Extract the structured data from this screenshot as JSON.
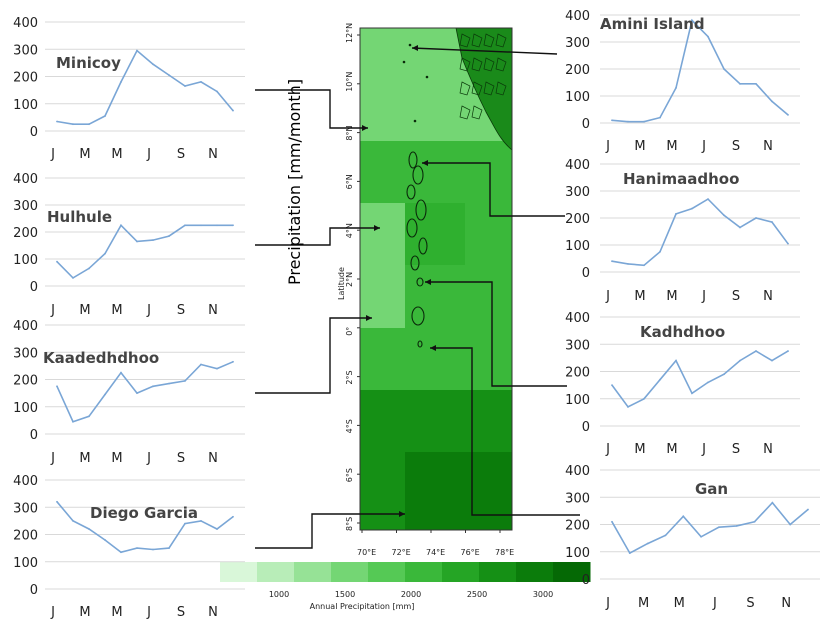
{
  "figure": {
    "y_axis_label": "Precipitation [mm/month]",
    "colorbar_title": "Annual Precipitation [mm]",
    "colorbar_ticks": [
      "1000",
      "1500",
      "2000",
      "2500",
      "3000"
    ],
    "colorbar_colors": [
      "#d9f7d9",
      "#b8edb8",
      "#96e296",
      "#74d674",
      "#55c955",
      "#3ab83a",
      "#25a525",
      "#159015",
      "#0b7c0b",
      "#056905"
    ],
    "map": {
      "lat_ticks": [
        "12°N",
        "10°N",
        "8°N",
        "6°N",
        "4°N",
        "2°N",
        "0°",
        "2°S",
        "4°S",
        "6°S",
        "8°S"
      ],
      "lon_ticks": [
        "70°E",
        "72°E",
        "74°E",
        "76°E",
        "78°E"
      ],
      "lat_label": "Latitude",
      "colors": {
        "light": "#74d674",
        "mid": "#3ab83a",
        "mid2": "#2fb02f",
        "dark": "#159015",
        "darker": "#0b7c0b",
        "land": "#1a8a1a"
      }
    }
  },
  "chart_data": [
    {
      "type": "line",
      "title": "Minicoy",
      "categories": [
        "J",
        "F",
        "M",
        "A",
        "M",
        "J",
        "J",
        "A",
        "S",
        "O",
        "N",
        "D"
      ],
      "tick_labels": [
        "J",
        "M",
        "M",
        "J",
        "S",
        "N"
      ],
      "yticks": [
        "400",
        "300",
        "200",
        "100",
        "0"
      ],
      "ylim": [
        0,
        400
      ],
      "values": [
        35,
        25,
        25,
        55,
        180,
        295,
        245,
        205,
        165,
        180,
        145,
        75
      ],
      "color": "#7aa6d6"
    },
    {
      "type": "line",
      "title": "Hulhule",
      "categories": [
        "J",
        "F",
        "M",
        "A",
        "M",
        "J",
        "J",
        "A",
        "S",
        "O",
        "N",
        "D"
      ],
      "tick_labels": [
        "J",
        "M",
        "M",
        "J",
        "S",
        "N"
      ],
      "yticks": [
        "400",
        "300",
        "200",
        "100",
        "0"
      ],
      "ylim": [
        0,
        400
      ],
      "values": [
        90,
        30,
        65,
        120,
        225,
        165,
        170,
        185,
        225,
        225,
        225,
        225
      ],
      "color": "#7aa6d6"
    },
    {
      "type": "line",
      "title": "Kaadedhdhoo",
      "categories": [
        "J",
        "F",
        "M",
        "A",
        "M",
        "J",
        "J",
        "A",
        "S",
        "O",
        "N",
        "D"
      ],
      "tick_labels": [
        "J",
        "M",
        "M",
        "J",
        "S",
        "N"
      ],
      "yticks": [
        "400",
        "300",
        "200",
        "100",
        "0"
      ],
      "ylim": [
        0,
        400
      ],
      "values": [
        175,
        45,
        65,
        145,
        225,
        150,
        175,
        185,
        195,
        255,
        240,
        265
      ],
      "color": "#7aa6d6"
    },
    {
      "type": "line",
      "title": "Diego Garcia",
      "categories": [
        "J",
        "F",
        "M",
        "A",
        "M",
        "J",
        "J",
        "A",
        "S",
        "O",
        "N",
        "D"
      ],
      "tick_labels": [
        "J",
        "M",
        "M",
        "J",
        "S",
        "N"
      ],
      "yticks": [
        "400",
        "300",
        "200",
        "100",
        "0"
      ],
      "ylim": [
        0,
        400
      ],
      "values": [
        320,
        250,
        220,
        180,
        135,
        150,
        145,
        150,
        240,
        250,
        220,
        265
      ],
      "color": "#7aa6d6"
    },
    {
      "type": "line",
      "title": "Amini Island",
      "categories": [
        "J",
        "F",
        "M",
        "A",
        "M",
        "J",
        "J",
        "A",
        "S",
        "O",
        "N",
        "D"
      ],
      "tick_labels": [
        "J",
        "M",
        "M",
        "J",
        "S",
        "N"
      ],
      "yticks": [
        "400",
        "300",
        "200",
        "100",
        "0"
      ],
      "ylim": [
        0,
        400
      ],
      "values": [
        10,
        5,
        5,
        20,
        130,
        380,
        320,
        200,
        145,
        145,
        80,
        30
      ],
      "color": "#7aa6d6"
    },
    {
      "type": "line",
      "title": "Hanimaadhoo",
      "categories": [
        "J",
        "F",
        "M",
        "A",
        "M",
        "J",
        "J",
        "A",
        "S",
        "O",
        "N",
        "D"
      ],
      "tick_labels": [
        "J",
        "M",
        "M",
        "J",
        "S",
        "N"
      ],
      "yticks": [
        "400",
        "300",
        "200",
        "100",
        "0"
      ],
      "ylim": [
        0,
        400
      ],
      "values": [
        40,
        30,
        25,
        75,
        215,
        235,
        270,
        210,
        165,
        200,
        185,
        105
      ],
      "color": "#7aa6d6"
    },
    {
      "type": "line",
      "title": "Kadhdhoo",
      "categories": [
        "J",
        "F",
        "M",
        "A",
        "M",
        "J",
        "J",
        "A",
        "S",
        "O",
        "N",
        "D"
      ],
      "tick_labels": [
        "J",
        "M",
        "M",
        "J",
        "S",
        "N"
      ],
      "yticks": [
        "400",
        "300",
        "200",
        "100",
        "0"
      ],
      "ylim": [
        0,
        400
      ],
      "values": [
        150,
        70,
        100,
        170,
        240,
        120,
        160,
        190,
        240,
        275,
        240,
        275
      ],
      "color": "#7aa6d6"
    },
    {
      "type": "line",
      "title": "Gan",
      "categories": [
        "J",
        "F",
        "M",
        "A",
        "M",
        "J",
        "J",
        "A",
        "S",
        "O",
        "N",
        "D"
      ],
      "tick_labels": [
        "J",
        "M",
        "M",
        "J",
        "S",
        "N"
      ],
      "yticks": [
        "400",
        "300",
        "200",
        "100",
        "0"
      ],
      "ylim": [
        0,
        400
      ],
      "values": [
        210,
        95,
        130,
        160,
        230,
        155,
        190,
        195,
        210,
        280,
        200,
        255
      ],
      "color": "#7aa6d6"
    }
  ]
}
